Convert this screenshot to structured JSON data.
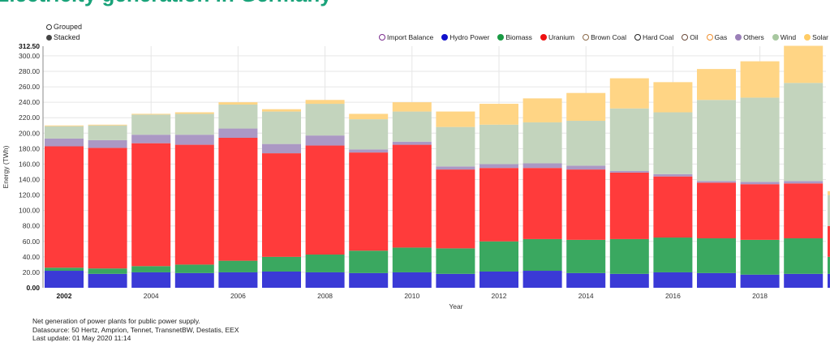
{
  "page": {
    "title": "Electricity generation in Germany"
  },
  "modes": [
    {
      "label": "Grouped",
      "selected": false
    },
    {
      "label": "Stacked",
      "selected": true
    }
  ],
  "legend": [
    {
      "label": "Import Balance",
      "color": "#7b2d8e",
      "filled": false
    },
    {
      "label": "Hydro Power",
      "color": "#1111cc",
      "filled": true
    },
    {
      "label": "Biomass",
      "color": "#1a9a44",
      "filled": true
    },
    {
      "label": "Uranium",
      "color": "#ee1111",
      "filled": true
    },
    {
      "label": "Brown Coal",
      "color": "#8b6a4a",
      "filled": false
    },
    {
      "label": "Hard Coal",
      "color": "#222222",
      "filled": false
    },
    {
      "label": "Oil",
      "color": "#6b4a3a",
      "filled": false
    },
    {
      "label": "Gas",
      "color": "#f09030",
      "filled": false
    },
    {
      "label": "Others",
      "color": "#9b80b8",
      "filled": true
    },
    {
      "label": "Wind",
      "color": "#a8c8a0",
      "filled": true
    },
    {
      "label": "Solar",
      "color": "#ffcc66",
      "filled": true
    }
  ],
  "notes": [
    "Net generation of power plants for public power supply.",
    "Datasource: 50 Hertz, Amprion, Tennet, TransnetBW, Destatis, EEX",
    "Last update: 01 May 2020 11:14"
  ],
  "chart_data": {
    "type": "bar",
    "stacked": true,
    "title": "Electricity generation in Germany",
    "xlabel": "Year",
    "ylabel": "Energy (TWh)",
    "ylim": [
      0,
      312.5
    ],
    "yticks": [
      "0.00",
      "20.00",
      "40.00",
      "60.00",
      "80.00",
      "100.00",
      "120.00",
      "140.00",
      "160.00",
      "180.00",
      "200.00",
      "220.00",
      "240.00",
      "260.00",
      "280.00",
      "300.00",
      "312.50"
    ],
    "ytick_values": [
      0,
      20,
      40,
      60,
      80,
      100,
      120,
      140,
      160,
      180,
      200,
      220,
      240,
      260,
      280,
      300,
      312.5
    ],
    "categories": [
      "2002",
      "2003",
      "2004",
      "2005",
      "2006",
      "2007",
      "2008",
      "2009",
      "2010",
      "2011",
      "2012",
      "2013",
      "2014",
      "2015",
      "2016",
      "2017",
      "2018",
      "2019"
    ],
    "xtick_labels": [
      "2002",
      "2004",
      "2006",
      "2008",
      "2010",
      "2012",
      "2014",
      "2016",
      "2018"
    ],
    "highlight_xtick": "2002",
    "grid": true,
    "legend_position": "top-right",
    "series": [
      {
        "name": "Hydro Power",
        "color": "#3a3ad6",
        "values": [
          22,
          18,
          20,
          19,
          20,
          21,
          20,
          19,
          20,
          18,
          21,
          22,
          19,
          18,
          20,
          19,
          17,
          18
        ]
      },
      {
        "name": "Biomass",
        "color": "#3aa860",
        "values": [
          4,
          7,
          8,
          11,
          15,
          19,
          23,
          29,
          32,
          33,
          39,
          41,
          43,
          45,
          45,
          45,
          45,
          46
        ]
      },
      {
        "name": "Uranium",
        "color": "#ff3b3b",
        "values": [
          157,
          156,
          159,
          155,
          159,
          134,
          141,
          127,
          133,
          102,
          95,
          92,
          91,
          86,
          79,
          72,
          72,
          71
        ]
      },
      {
        "name": "Others",
        "color": "#ab98c4",
        "values": [
          10,
          10,
          11,
          13,
          12,
          12,
          13,
          4,
          4,
          4,
          5,
          6,
          5,
          2,
          3,
          2,
          3,
          3
        ]
      },
      {
        "name": "Wind",
        "color": "#c3d4bd",
        "values": [
          16,
          19,
          26,
          27,
          31,
          42,
          41,
          39,
          39,
          51,
          51,
          53,
          58,
          81,
          80,
          105,
          109,
          127
        ]
      },
      {
        "name": "Solar",
        "color": "#ffd585",
        "values": [
          1,
          1,
          1,
          2,
          3,
          3,
          5,
          7,
          12,
          20,
          27,
          31,
          36,
          39,
          39,
          40,
          47,
          48
        ]
      }
    ]
  }
}
